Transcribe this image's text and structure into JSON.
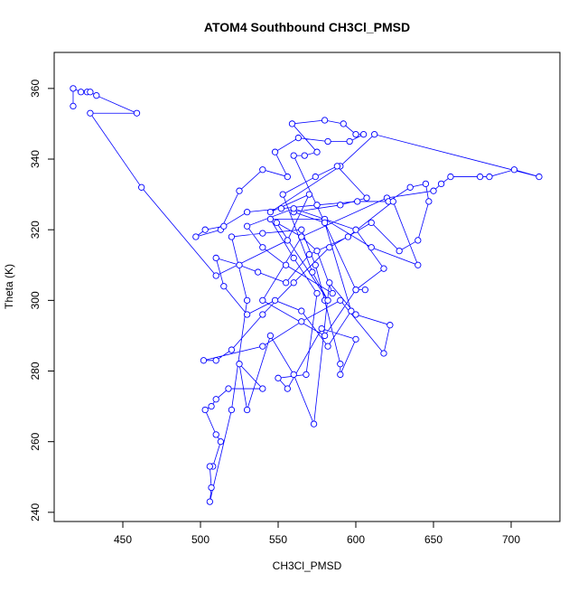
{
  "chart_data": {
    "type": "line",
    "title": "ATOM4 Southbound CH3Cl_PMSD",
    "xlabel": "CH3Cl_PMSD",
    "ylabel": "Theta (K)",
    "color": "#0000ff",
    "markers": true,
    "x": [
      418,
      418,
      423,
      427,
      429,
      433,
      459,
      429,
      462,
      510,
      556,
      570,
      545,
      590,
      612,
      718,
      702,
      686,
      680,
      661,
      655,
      650,
      620,
      565,
      540,
      580,
      600,
      560,
      567,
      575,
      559,
      580,
      592,
      600,
      605,
      596,
      582,
      563,
      548,
      556,
      540,
      525,
      513,
      497,
      503,
      515,
      530,
      552,
      575,
      601,
      621,
      635,
      645,
      647,
      640,
      628,
      610,
      583,
      560,
      540,
      520,
      510,
      502,
      540,
      565,
      590,
      618,
      622,
      600,
      583,
      573,
      560,
      545,
      530,
      525,
      540,
      518,
      510,
      507,
      503,
      510,
      513,
      508,
      506,
      507,
      506,
      520,
      530,
      520,
      540,
      565,
      574,
      580,
      590,
      590,
      600,
      578,
      556,
      550,
      568,
      575,
      560,
      545,
      580,
      610,
      640,
      624,
      595,
      570,
      555,
      537,
      525,
      510,
      515,
      530,
      548,
      565,
      582,
      597,
      580,
      560,
      590,
      607,
      588,
      574,
      553,
      572,
      582,
      549,
      565,
      575,
      585,
      555,
      540,
      530,
      560,
      600,
      618,
      600,
      606
    ],
    "values": [
      355,
      360,
      359,
      359,
      359,
      358,
      353,
      353,
      332,
      307,
      317,
      330,
      325,
      338,
      347,
      335,
      337,
      335,
      335,
      335,
      333,
      331,
      329,
      318,
      300,
      290,
      303,
      341,
      341,
      342,
      350,
      351,
      350,
      347,
      347,
      345,
      345,
      346,
      342,
      335,
      337,
      331,
      320,
      318,
      320,
      321,
      325,
      326,
      327,
      328,
      328,
      332,
      333,
      328,
      317,
      314,
      322,
      315,
      305,
      296,
      286,
      283,
      283,
      287,
      294,
      300,
      285,
      293,
      296,
      305,
      265,
      279,
      290,
      269,
      282,
      275,
      275,
      272,
      270,
      269,
      262,
      260,
      253,
      253,
      247,
      243,
      269,
      300,
      318,
      319,
      320,
      310,
      300,
      282,
      279,
      289,
      292,
      275,
      278,
      279,
      302,
      312,
      323,
      323,
      315,
      310,
      328,
      318,
      313,
      305,
      308,
      310,
      312,
      304,
      296,
      300,
      297,
      287,
      297,
      322,
      325,
      327,
      329,
      338,
      335,
      330,
      308,
      300,
      322,
      318,
      314,
      302,
      310,
      315,
      321,
      326,
      320,
      309,
      303,
      303
    ],
    "xlim": [
      405.8,
      731.4
    ],
    "ylim": [
      237.4,
      370.2
    ],
    "xticks": [
      450,
      500,
      550,
      600,
      650,
      700
    ],
    "yticks": [
      240,
      260,
      280,
      300,
      320,
      340,
      360
    ]
  }
}
